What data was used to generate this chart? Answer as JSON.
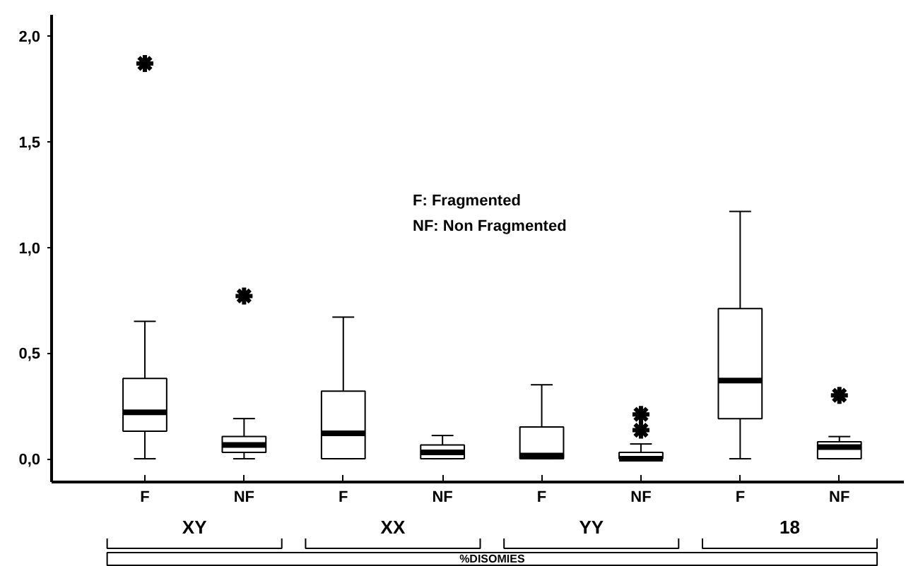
{
  "chart_data": {
    "type": "box",
    "categories": [
      "F",
      "NF",
      "F",
      "NF",
      "F",
      "NF",
      "F",
      "NF"
    ],
    "xlabel": "%DISOMIES",
    "ylim": [
      -0.11,
      2.1
    ],
    "yticks": [
      {
        "value": 0,
        "label": "0,0"
      },
      {
        "value": 0.5,
        "label": "0,5"
      },
      {
        "value": 1,
        "label": "1,0"
      },
      {
        "value": 1.5,
        "label": "1,5"
      },
      {
        "value": 2,
        "label": "2,0"
      }
    ],
    "marker": "star",
    "annotations": [
      "F: Fragmented",
      "NF: Non Fragmented",
      "XY",
      "XX",
      "YY",
      "18"
    ],
    "boxes": [
      {
        "low": 0,
        "q1": 0.13,
        "median": 0.22,
        "q3": 0.38,
        "high": 0.65,
        "outliers": [
          1.87
        ]
      },
      {
        "low": 0,
        "q1": 0.03,
        "median": 0.065,
        "q3": 0.105,
        "high": 0.19,
        "outliers": [
          0.77
        ]
      },
      {
        "low": 0,
        "q1": 0,
        "median": 0.12,
        "q3": 0.32,
        "high": 0.67
      },
      {
        "low": 0,
        "q1": 0,
        "median": 0.03,
        "q3": 0.065,
        "high": 0.11
      },
      {
        "low": 0,
        "q1": 0,
        "median": 0.015,
        "q3": 0.15,
        "high": 0.35
      },
      {
        "low": 0,
        "q1": 0,
        "median": 0.0,
        "q3": 0.03,
        "high": 0.07,
        "outliers": [
          0.135,
          0.21
        ]
      },
      {
        "low": 0,
        "q1": 0.19,
        "median": 0.37,
        "q3": 0.71,
        "high": 1.17
      },
      {
        "low": 0,
        "q1": 0,
        "median": 0.055,
        "q3": 0.08,
        "high": 0.105,
        "outliers": [
          0.3
        ]
      }
    ]
  }
}
